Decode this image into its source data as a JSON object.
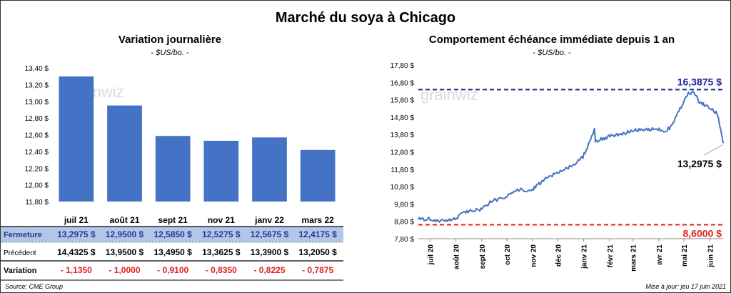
{
  "title": "Marché du soya à Chicago",
  "watermark": "grainwiz",
  "left": {
    "title": "Variation journalière",
    "unit": "- $US/bo. -",
    "chart_data": {
      "type": "bar",
      "categories": [
        "juil 21",
        "août 21",
        "sept 21",
        "nov 21",
        "janv 22",
        "mars 22"
      ],
      "values": [
        13.2975,
        12.95,
        12.585,
        12.5275,
        12.5675,
        12.4175
      ],
      "ylim": [
        11.8,
        13.4
      ],
      "yticks": [
        13.4,
        13.2,
        13.0,
        12.8,
        12.6,
        12.4,
        12.2,
        12.0,
        11.8
      ],
      "ytick_labels": [
        "13,40 $",
        "13,20 $",
        "13,00 $",
        "12,80 $",
        "12,60 $",
        "12,40 $",
        "12,20 $",
        "12,00 $",
        "11,80 $"
      ],
      "bar_color": "#4472C4"
    },
    "table": {
      "rows": [
        {
          "label": "Fermeture",
          "cells": [
            "13,2975  $",
            "12,9500  $",
            "12,5850  $",
            "12,5275  $",
            "12,5675  $",
            "12,4175  $"
          ]
        },
        {
          "label": "Précédent",
          "cells": [
            "14,4325  $",
            "13,9500  $",
            "13,4950  $",
            "13,3625  $",
            "13,3900  $",
            "13,2050  $"
          ]
        },
        {
          "label": "Variation",
          "cells": [
            "- 1,1350",
            "- 1,0000",
            "- 0,9100",
            "- 0,8350",
            "- 0,8225",
            "- 0,7875"
          ]
        }
      ]
    }
  },
  "right": {
    "title": "Comportement  échéance immédiate depuis 1 an",
    "unit": "- $US/bo. -",
    "chart_data": {
      "type": "line",
      "ylim": [
        7.8,
        17.8
      ],
      "yticks": [
        17.8,
        16.8,
        15.8,
        14.8,
        13.8,
        12.8,
        11.8,
        10.8,
        9.8,
        8.8,
        7.8
      ],
      "ytick_labels": [
        "17,80 $",
        "16,80 $",
        "15,80 $",
        "14,80 $",
        "13,80 $",
        "12,80 $",
        "11,80 $",
        "10,80 $",
        "9,80 $",
        "8,80 $",
        "7,80 $"
      ],
      "xtick_labels": [
        "juil 20",
        "août 20",
        "sept 20",
        "oct 20",
        "nov 20",
        "déc 20",
        "janv 21",
        "févr 21",
        "mars 21",
        "avr 21",
        "mai 21",
        "juin 21"
      ],
      "x": [
        "2020-06-17",
        "2020-07-01",
        "2020-07-15",
        "2020-07-31",
        "2020-08-10",
        "2020-08-31",
        "2020-09-15",
        "2020-09-30",
        "2020-10-15",
        "2020-10-30",
        "2020-11-15",
        "2020-11-30",
        "2020-12-15",
        "2020-12-31",
        "2021-01-12",
        "2021-01-14",
        "2021-01-15",
        "2021-01-31",
        "2021-02-15",
        "2021-02-28",
        "2021-03-15",
        "2021-03-31",
        "2021-04-08",
        "2021-04-15",
        "2021-04-25",
        "2021-04-30",
        "2021-05-05",
        "2021-05-12",
        "2021-05-20",
        "2021-05-31",
        "2021-06-10",
        "2021-06-17"
      ],
      "y": [
        8.9,
        8.95,
        8.8,
        8.9,
        9.3,
        9.5,
        10.0,
        10.2,
        10.6,
        10.6,
        11.2,
        11.6,
        11.9,
        12.5,
        13.8,
        14.1,
        13.4,
        13.7,
        13.8,
        14.0,
        14.1,
        14.1,
        14.0,
        14.2,
        15.2,
        15.5,
        16.1,
        16.3,
        15.6,
        15.4,
        15.0,
        13.3
      ],
      "series_color": "#4472C4",
      "ref_lines": [
        {
          "value": 16.3875,
          "label": "16,3875  $",
          "color": "#1F1FA0"
        },
        {
          "value": 8.6,
          "label": "8,6000  $",
          "color": "#E02020"
        }
      ],
      "last_label": "13,2975  $"
    }
  },
  "footer": {
    "source": "Source: CME Group",
    "updated": "Mise à jour: jeu 17 juin 2021"
  }
}
